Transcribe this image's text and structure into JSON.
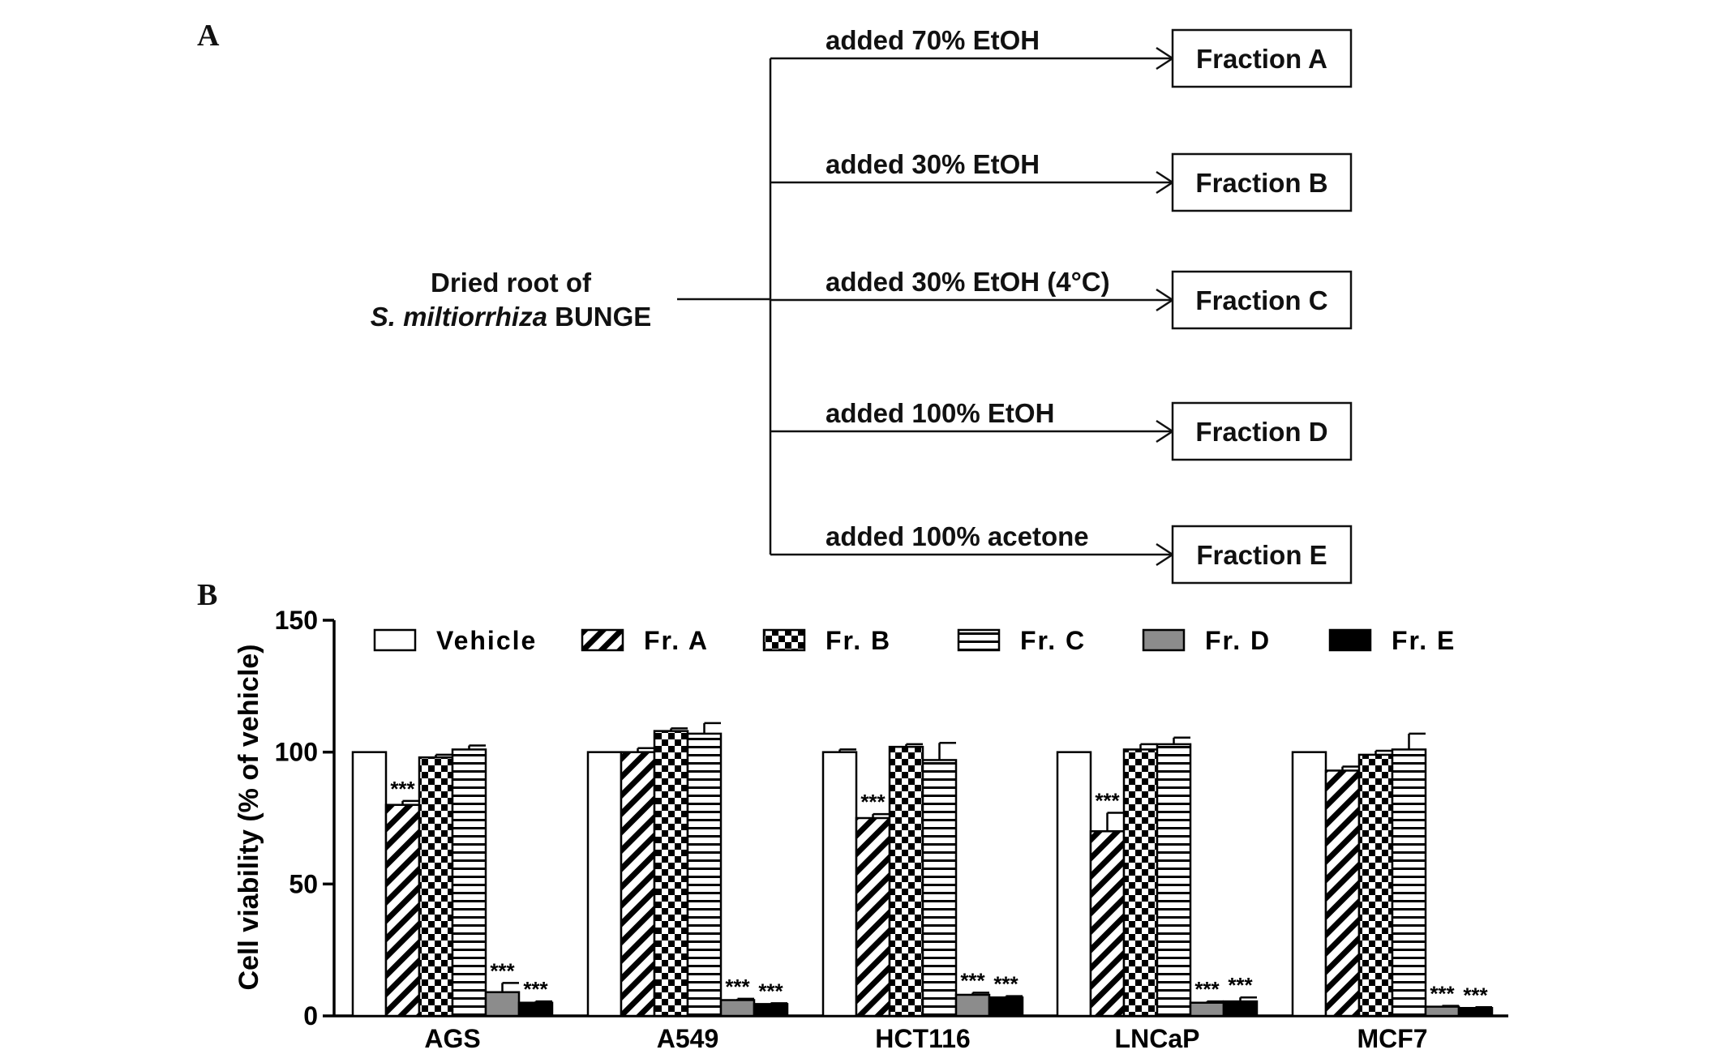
{
  "panel_a": {
    "label": "A",
    "source_line1": "Dried root of",
    "source_line2_italic": "S. miltiorrhiza",
    "source_line2_rest": " BUNGE",
    "steps": [
      {
        "treatment": "added 70% EtOH",
        "fraction": "Fraction A"
      },
      {
        "treatment": "added 30% EtOH",
        "fraction": "Fraction B"
      },
      {
        "treatment": "added 30% EtOH (4°C)",
        "fraction": "Fraction C"
      },
      {
        "treatment": "added 100% EtOH",
        "fraction": "Fraction D"
      },
      {
        "treatment": "added 100% acetone",
        "fraction": "Fraction E"
      }
    ]
  },
  "panel_b": {
    "label": "B"
  },
  "chart_data": {
    "type": "bar",
    "title": "",
    "xlabel": "",
    "ylabel": "Cell viability  (% of vehicle)",
    "ylim": [
      0,
      150
    ],
    "yticks": [
      0,
      50,
      100,
      150
    ],
    "categories": [
      "AGS",
      "A549",
      "HCT116",
      "LNCaP",
      "MCF7"
    ],
    "legend_position": "top",
    "significance_mark": "***",
    "series": [
      {
        "name": "Vehicle",
        "pattern": "white",
        "values": [
          100,
          100,
          100,
          100,
          100
        ],
        "errors": [
          0,
          0,
          1,
          0,
          0
        ],
        "significant": [
          false,
          false,
          false,
          false,
          false
        ]
      },
      {
        "name": "Fr. A",
        "pattern": "diagonal-hatch",
        "values": [
          80,
          100,
          75,
          70,
          93
        ],
        "errors": [
          1.5,
          1.5,
          1.5,
          7,
          1.5
        ],
        "significant": [
          true,
          false,
          true,
          true,
          false
        ]
      },
      {
        "name": "Fr. B",
        "pattern": "checkerboard",
        "values": [
          98,
          108,
          102,
          101,
          99
        ],
        "errors": [
          1,
          1,
          1,
          2,
          1.5
        ],
        "significant": [
          false,
          false,
          false,
          false,
          false
        ]
      },
      {
        "name": "Fr. C",
        "pattern": "horizontal-lines",
        "values": [
          101,
          107,
          97,
          103,
          101
        ],
        "errors": [
          1.5,
          4,
          6.5,
          2.5,
          6
        ],
        "significant": [
          false,
          false,
          false,
          false,
          false
        ]
      },
      {
        "name": "Fr. D",
        "pattern": "gray",
        "color": "#8c8c8c",
        "values": [
          9,
          6,
          8,
          5,
          3.5
        ],
        "errors": [
          3.5,
          0.5,
          0.8,
          0.5,
          0.3
        ],
        "significant": [
          true,
          true,
          true,
          true,
          true
        ]
      },
      {
        "name": "Fr. E",
        "pattern": "black",
        "color": "#000000",
        "values": [
          5,
          4.5,
          7,
          5.5,
          3
        ],
        "errors": [
          0.5,
          0.3,
          0.5,
          1.5,
          0.3
        ],
        "significant": [
          true,
          true,
          true,
          true,
          true
        ]
      }
    ]
  }
}
